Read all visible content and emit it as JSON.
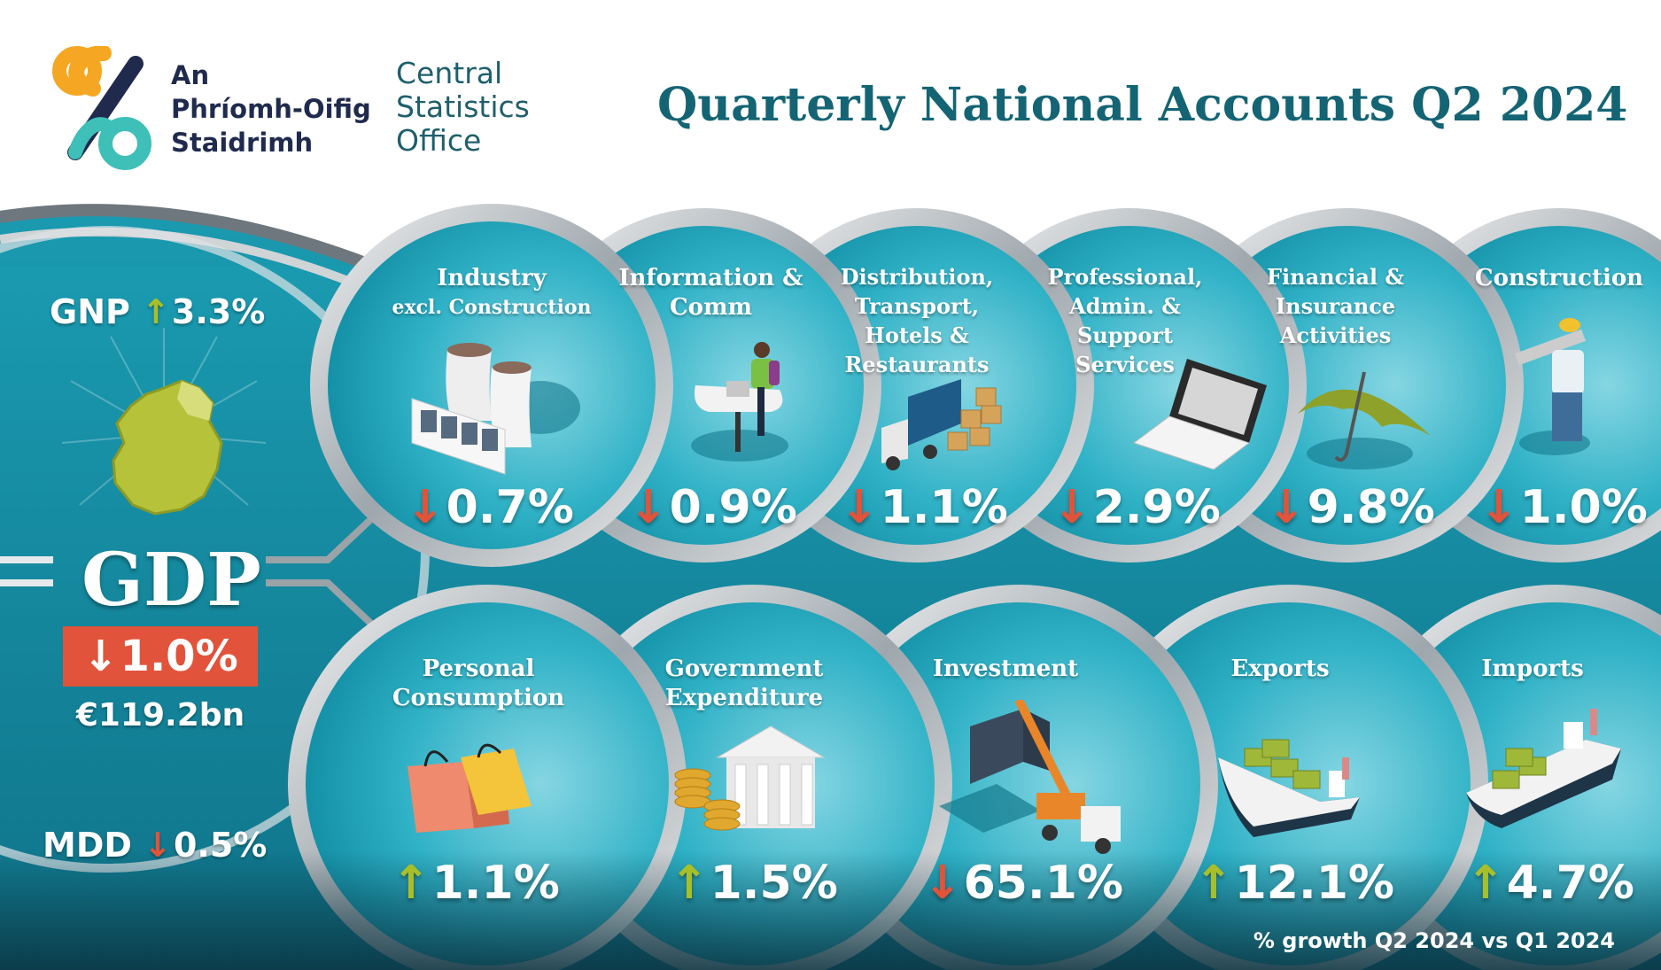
{
  "header": {
    "logo_irish": [
      "An",
      "Phríomh-Oifig",
      "Staidrimh"
    ],
    "logo_english": [
      "Central",
      "Statistics",
      "Office"
    ],
    "title": "Quarterly National Accounts Q2 2024"
  },
  "summary": {
    "gnp": {
      "label": "GNP",
      "direction": "up",
      "value": "3.3%"
    },
    "gdp": {
      "label": "GDP",
      "direction": "down",
      "change": "1.0%",
      "amount": "€119.2bn"
    },
    "mdd": {
      "label": "MDD",
      "direction": "down",
      "value": "0.5%"
    }
  },
  "sectors": [
    {
      "label": "Industry",
      "sublabel": "excl. Construction",
      "direction": "down",
      "value": "0.7%",
      "icon": "factory-icon"
    },
    {
      "label": "Information & Comm",
      "direction": "down",
      "value": "0.9%",
      "icon": "person-at-computer-icon"
    },
    {
      "label": "Distribution, Transport, Hotels & Restaurants",
      "direction": "down",
      "value": "1.1%",
      "icon": "delivery-truck-icon"
    },
    {
      "label": "Professional, Admin. & Support Services",
      "direction": "down",
      "value": "2.9%",
      "icon": "laptop-icon"
    },
    {
      "label": "Financial & Insurance Activities",
      "direction": "down",
      "value": "9.8%",
      "icon": "umbrella-icon"
    },
    {
      "label": "Construction",
      "direction": "down",
      "value": "1.0%",
      "icon": "construction-worker-icon"
    }
  ],
  "expenditure": [
    {
      "label": "Personal Consumption",
      "direction": "up",
      "value": "1.1%",
      "icon": "shopping-bags-icon"
    },
    {
      "label": "Government Expenditure",
      "direction": "up",
      "value": "1.5%",
      "icon": "government-building-icon"
    },
    {
      "label": "Investment",
      "direction": "down",
      "value": "65.1%",
      "icon": "crane-icon"
    },
    {
      "label": "Exports",
      "direction": "up",
      "value": "12.1%",
      "icon": "cargo-ship-icon"
    },
    {
      "label": "Imports",
      "direction": "up",
      "value": "4.7%",
      "icon": "cargo-ship-icon"
    }
  ],
  "footnote": "% growth Q2 2024 vs Q1 2024",
  "colors": {
    "up": "#a8bf2a",
    "down": "#e1533a",
    "title": "#146474",
    "panel": "#1d9bb0"
  }
}
